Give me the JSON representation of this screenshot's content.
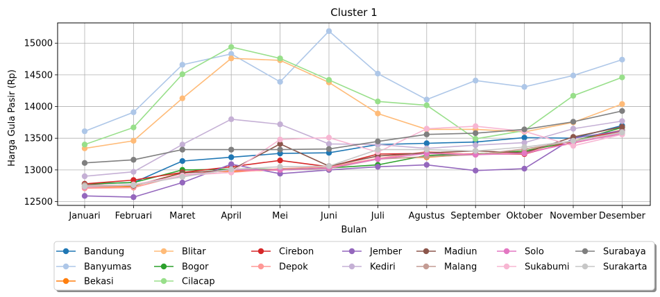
{
  "chart_data": {
    "type": "line",
    "title": "Cluster 1",
    "xlabel": "Bulan",
    "ylabel": "Harga Gula Pasir (Rp)",
    "categories": [
      "Januari",
      "Februari",
      "Maret",
      "April",
      "Mei",
      "Juni",
      "Juli",
      "Agustus",
      "September",
      "Oktober",
      "November",
      "Desember"
    ],
    "ylim": [
      12440,
      15320
    ],
    "yticks": [
      12500,
      13000,
      13500,
      14000,
      14500,
      15000
    ],
    "ytick_labels": [
      "12500",
      "13000",
      "13500",
      "14000",
      "14500",
      "15000"
    ],
    "grid": true,
    "legend_position": "bottom",
    "legend_columns": 8,
    "series": [
      {
        "name": "Bandung",
        "color": "#1f77b4",
        "values": [
          12780,
          12800,
          13140,
          13200,
          13260,
          13270,
          13400,
          13420,
          13440,
          13510,
          13500,
          13700
        ]
      },
      {
        "name": "Banyumas",
        "color": "#aec7e8",
        "values": [
          13610,
          13910,
          14660,
          14830,
          14390,
          15190,
          14520,
          14110,
          14410,
          14310,
          14490,
          14740
        ]
      },
      {
        "name": "Bekasi",
        "color": "#ff7f0e",
        "values": [
          12730,
          12740,
          12960,
          12980,
          13000,
          13030,
          13180,
          13200,
          13250,
          13300,
          13460,
          13630
        ]
      },
      {
        "name": "Blitar",
        "color": "#ffbb78",
        "values": [
          13340,
          13460,
          14130,
          14760,
          14730,
          14380,
          13890,
          13640,
          13640,
          13600,
          13750,
          14040
        ]
      },
      {
        "name": "Bogor",
        "color": "#2ca02c",
        "values": [
          12780,
          12800,
          13000,
          13010,
          13010,
          13030,
          13080,
          13230,
          13250,
          13300,
          13450,
          13670
        ]
      },
      {
        "name": "Cilacap",
        "color": "#98df8a",
        "values": [
          13400,
          13670,
          14510,
          14940,
          14760,
          14420,
          14080,
          14020,
          13490,
          13620,
          14170,
          14460
        ]
      },
      {
        "name": "Cirebon",
        "color": "#d62728",
        "values": [
          12780,
          12840,
          12960,
          13050,
          13150,
          13050,
          13250,
          13260,
          13250,
          13250,
          13450,
          13620
        ]
      },
      {
        "name": "Depok",
        "color": "#ff9896",
        "values": [
          12710,
          12720,
          12920,
          12960,
          13020,
          13050,
          13180,
          13290,
          13240,
          13280,
          13420,
          13590
        ]
      },
      {
        "name": "Jember",
        "color": "#9467bd",
        "values": [
          12590,
          12570,
          12800,
          13090,
          12940,
          13000,
          13050,
          13080,
          12990,
          13020,
          13500,
          13620
        ]
      },
      {
        "name": "Kediri",
        "color": "#c5b0d5",
        "values": [
          12900,
          12970,
          13400,
          13800,
          13720,
          13410,
          13400,
          13340,
          13390,
          13430,
          13650,
          13770
        ]
      },
      {
        "name": "Madiun",
        "color": "#8c564b",
        "values": [
          12770,
          12750,
          12950,
          13000,
          13410,
          13060,
          13220,
          13270,
          13300,
          13270,
          13520,
          13680
        ]
      },
      {
        "name": "Malang",
        "color": "#c49c94",
        "values": [
          12760,
          12760,
          12900,
          13010,
          13000,
          13020,
          13170,
          13210,
          13240,
          13330,
          13450,
          13600
        ]
      },
      {
        "name": "Solo",
        "color": "#e377c2",
        "values": [
          12730,
          12760,
          12910,
          13000,
          13000,
          13030,
          13170,
          13260,
          13240,
          13260,
          13430,
          13570
        ]
      },
      {
        "name": "Sukabumi",
        "color": "#f7b6d2",
        "values": [
          12740,
          12770,
          12910,
          12960,
          13480,
          13510,
          13280,
          13650,
          13690,
          13610,
          13380,
          13560
        ]
      },
      {
        "name": "Surabaya",
        "color": "#7f7f7f",
        "values": [
          13110,
          13160,
          13320,
          13320,
          13320,
          13330,
          13450,
          13560,
          13580,
          13640,
          13760,
          13930
        ]
      },
      {
        "name": "Surakarta",
        "color": "#c7c7c7",
        "values": [
          12740,
          12760,
          12890,
          13010,
          13050,
          13060,
          13320,
          13320,
          13300,
          13360,
          13460,
          13590
        ]
      }
    ]
  }
}
